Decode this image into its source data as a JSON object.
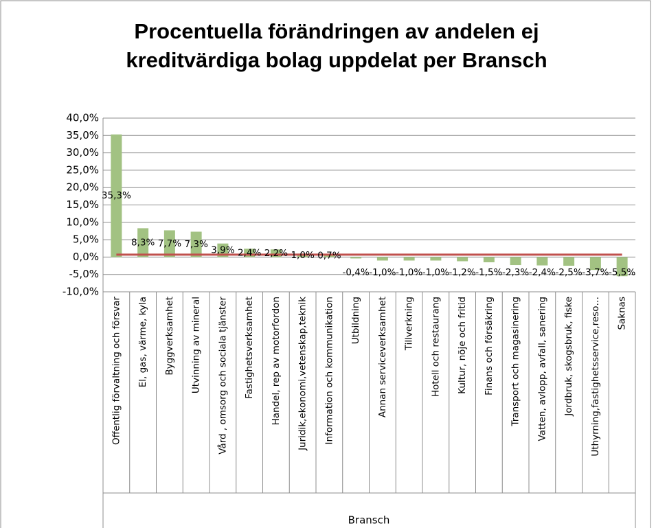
{
  "chart_data": {
    "type": "bar",
    "title": [
      "Procentuella förändringen av andelen ej",
      "kreditvärdiga bolag uppdelat per Bransch"
    ],
    "x_label": "Bransch",
    "categories": [
      "Offentlig förvaltning och försvar",
      "El, gas, värme, kyla",
      "Byggverksamhet",
      "Utvinning av mineral",
      "Vård , omsorg och sociala tjänster",
      "Fastighetsverksamhet",
      "Handel, rep av motorfordon",
      "Juridik,ekonomi,vetenskap,teknik",
      "Information och kommunikation",
      "Utbildning",
      "Annan serviceverksamhet",
      "Tillverkning",
      "Hotell och restaurang",
      "Kultur, nöje och fritid",
      "Finans och försäkring",
      "Transport och magasinering",
      "Vatten, avlopp, avfall, sanering",
      "Jordbruk, skogsbruk, fiske",
      "Uthyrning,fastighetsservice,reso…",
      "Saknas"
    ],
    "values": [
      35.3,
      8.3,
      7.7,
      7.3,
      3.9,
      2.4,
      2.2,
      1.0,
      0.7,
      -0.4,
      -1.0,
      -1.0,
      -1.0,
      -1.2,
      -1.5,
      -2.3,
      -2.4,
      -2.5,
      -3.7,
      -5.5
    ],
    "value_labels": [
      "35,3%",
      "8,3%",
      "7,7%",
      "7,3%",
      "3,9%",
      "2,4%",
      "2,2%",
      "1,0%",
      "0,7%",
      "-0,4%",
      "-1,0%",
      "-1,0%",
      "-1,0%",
      "-1,2%",
      "-1,5%",
      "-2,3%",
      "-2,4%",
      "-2,5%",
      "-3,7%",
      "-5,5%"
    ],
    "color": "#a2c282",
    "average_line": {
      "value": 0.7,
      "color": "#c0504d"
    },
    "ylim": [
      -10,
      40
    ],
    "yticks": [
      {
        "value": -10,
        "label": "-10,0%"
      },
      {
        "value": -5,
        "label": "-5,0%"
      },
      {
        "value": 0,
        "label": "0,0%"
      },
      {
        "value": 5,
        "label": "5,0%"
      },
      {
        "value": 10,
        "label": "10,0%"
      },
      {
        "value": 15,
        "label": "15,0%"
      },
      {
        "value": 20,
        "label": "20,0%"
      },
      {
        "value": 25,
        "label": "25,0%"
      },
      {
        "value": 30,
        "label": "30,0%"
      },
      {
        "value": 35,
        "label": "35,0%"
      },
      {
        "value": 40,
        "label": "40,0%"
      }
    ],
    "grid": true
  }
}
